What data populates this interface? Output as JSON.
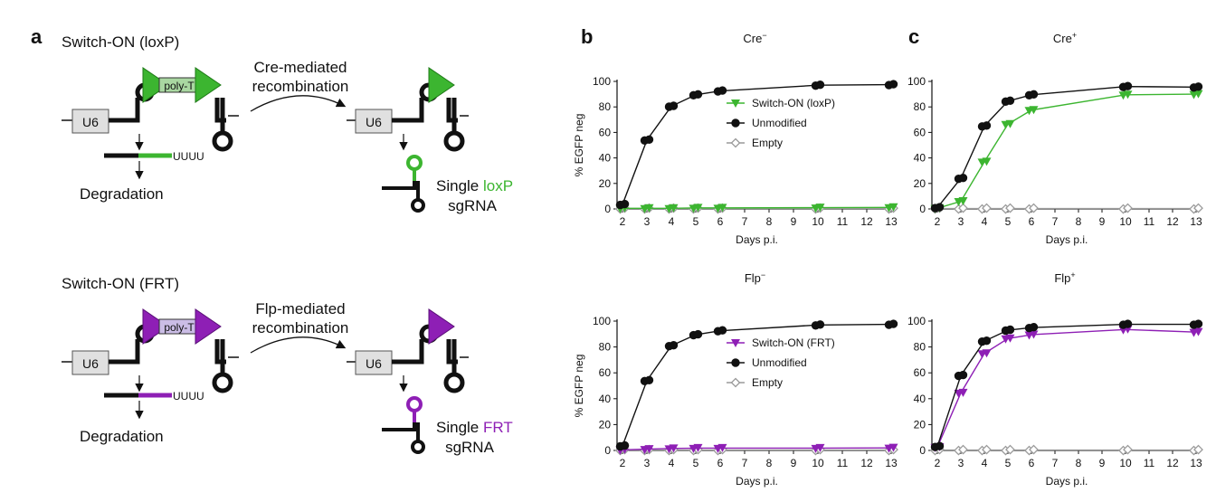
{
  "panel_labels": {
    "a": "a",
    "b": "b",
    "c": "c"
  },
  "colors": {
    "black": "#111111",
    "loxp_green": "#3cb530",
    "frt_purple": "#8e1fb5",
    "empty_gray": "#9a9a9a",
    "box_gray": "#e0e0e0",
    "polyt_green_fill": "#a9d7a1",
    "polyt_purple_fill": "#cbbde6"
  },
  "diagram": {
    "loxp": {
      "title": "Switch-ON (loxP)",
      "promoter": "U6",
      "polyt": "poly-T",
      "uuuu": "UUUU",
      "degradation": "Degradation",
      "arrow_line1": "Cre-mediated",
      "arrow_line2": "recombination",
      "product_promoter": "U6",
      "single_prefix": "Single ",
      "site": "loxP",
      "sgrna": "sgRNA"
    },
    "frt": {
      "title": "Switch-ON (FRT)",
      "promoter": "U6",
      "polyt": "poly-T",
      "uuuu": "UUUU",
      "degradation": "Degradation",
      "arrow_line1": "Flp-mediated",
      "arrow_line2": "recombination",
      "product_promoter": "U6",
      "single_prefix": "Single ",
      "site": "FRT",
      "sgrna": "sgRNA"
    }
  },
  "chart_data": [
    {
      "id": "b_top",
      "type": "line",
      "title": "Cre",
      "title_sup": "−",
      "xlabel": "Days p.i.",
      "ylabel": "% EGFP neg",
      "x_ticks": [
        2,
        3,
        4,
        5,
        6,
        7,
        8,
        9,
        10,
        11,
        12,
        13
      ],
      "xlim": [
        2,
        13
      ],
      "ylim": [
        0,
        100
      ],
      "y_ticks": [
        0,
        20,
        40,
        60,
        80,
        100
      ],
      "legend": "center-right",
      "series": [
        {
          "name": "Switch-ON (loxP)",
          "marker": "triangle-down",
          "color": "#3cb530",
          "x": [
            2,
            3,
            4,
            5,
            6,
            10,
            13
          ],
          "y": [
            0.5,
            0.5,
            0.5,
            0.8,
            0.8,
            1,
            1.2
          ]
        },
        {
          "name": "Unmodified",
          "marker": "circle",
          "color": "#111111",
          "x": [
            2,
            3,
            4,
            5,
            6,
            10,
            13
          ],
          "y": [
            3.5,
            54,
            80.5,
            89.5,
            92.5,
            97,
            97.5
          ]
        },
        {
          "name": "Empty",
          "marker": "diamond",
          "color": "#9a9a9a",
          "x": [
            2,
            3,
            4,
            5,
            6,
            10,
            13
          ],
          "y": [
            0.3,
            0.3,
            0.3,
            0.3,
            0.3,
            0.3,
            0.3
          ]
        }
      ]
    },
    {
      "id": "b_bottom",
      "type": "line",
      "title": "Flp",
      "title_sup": "−",
      "xlabel": "Days p.i.",
      "ylabel": "% EGFP neg",
      "x_ticks": [
        2,
        3,
        4,
        5,
        6,
        7,
        8,
        9,
        10,
        11,
        12,
        13
      ],
      "xlim": [
        2,
        13
      ],
      "ylim": [
        0,
        100
      ],
      "y_ticks": [
        0,
        20,
        40,
        60,
        80,
        100
      ],
      "legend": "center-right",
      "series": [
        {
          "name": "Switch-ON (FRT)",
          "marker": "triangle-down",
          "color": "#8e1fb5",
          "x": [
            2,
            3,
            4,
            5,
            6,
            10,
            13
          ],
          "y": [
            0.5,
            1,
            1.5,
            1.8,
            1.8,
            1.8,
            2
          ]
        },
        {
          "name": "Unmodified",
          "marker": "circle",
          "color": "#111111",
          "x": [
            2,
            3,
            4,
            5,
            6,
            10,
            13
          ],
          "y": [
            3.5,
            54,
            81,
            89.5,
            92.5,
            97,
            97.5
          ]
        },
        {
          "name": "Empty",
          "marker": "diamond",
          "color": "#9a9a9a",
          "x": [
            2,
            3,
            4,
            5,
            6,
            10,
            13
          ],
          "y": [
            0.3,
            0.3,
            0.3,
            0.3,
            0.3,
            0.3,
            0.3
          ]
        }
      ]
    },
    {
      "id": "c_top",
      "type": "line",
      "title": "Cre",
      "title_sup": "+",
      "xlabel": "Days p.i.",
      "ylabel": "",
      "x_ticks": [
        2,
        3,
        4,
        5,
        6,
        7,
        8,
        9,
        10,
        11,
        12,
        13
      ],
      "xlim": [
        2,
        13
      ],
      "ylim": [
        0,
        100
      ],
      "y_ticks": [
        0,
        20,
        40,
        60,
        80,
        100
      ],
      "legend": "none",
      "series": [
        {
          "name": "",
          "marker": "triangle-down",
          "color": "#3cb530",
          "x": [
            2,
            3,
            4,
            5,
            6,
            10,
            13
          ],
          "y": [
            0.5,
            6,
            37,
            66.5,
            77.5,
            89.5,
            90
          ]
        },
        {
          "name": "",
          "marker": "circle",
          "color": "#111111",
          "x": [
            2,
            3,
            4,
            5,
            6,
            10,
            13
          ],
          "y": [
            1,
            24,
            65,
            84.5,
            89.5,
            96,
            95.5
          ]
        },
        {
          "name": "",
          "marker": "diamond",
          "color": "#9a9a9a",
          "x": [
            2,
            3,
            4,
            5,
            6,
            10,
            13
          ],
          "y": [
            0.3,
            0.3,
            0.3,
            0.3,
            0.3,
            0.3,
            0.3
          ]
        }
      ]
    },
    {
      "id": "c_bottom",
      "type": "line",
      "title": "Flp",
      "title_sup": "+",
      "xlabel": "Days p.i.",
      "ylabel": "",
      "x_ticks": [
        2,
        3,
        4,
        5,
        6,
        7,
        8,
        9,
        10,
        11,
        12,
        13
      ],
      "xlim": [
        2,
        13
      ],
      "ylim": [
        0,
        100
      ],
      "y_ticks": [
        0,
        20,
        40,
        60,
        80,
        100
      ],
      "legend": "none",
      "series": [
        {
          "name": "",
          "marker": "triangle-down",
          "color": "#8e1fb5",
          "x": [
            2,
            3,
            4,
            5,
            6,
            10,
            13
          ],
          "y": [
            2.5,
            44.5,
            75,
            86.5,
            89.5,
            93.5,
            91.5
          ]
        },
        {
          "name": "",
          "marker": "circle",
          "color": "#111111",
          "x": [
            2,
            3,
            4,
            5,
            6,
            10,
            13
          ],
          "y": [
            3,
            58,
            84.5,
            93,
            95,
            97.5,
            97.5
          ]
        },
        {
          "name": "",
          "marker": "diamond",
          "color": "#9a9a9a",
          "x": [
            2,
            3,
            4,
            5,
            6,
            10,
            13
          ],
          "y": [
            0.3,
            0.3,
            0.3,
            0.3,
            0.3,
            0.3,
            0.3
          ]
        }
      ]
    }
  ]
}
